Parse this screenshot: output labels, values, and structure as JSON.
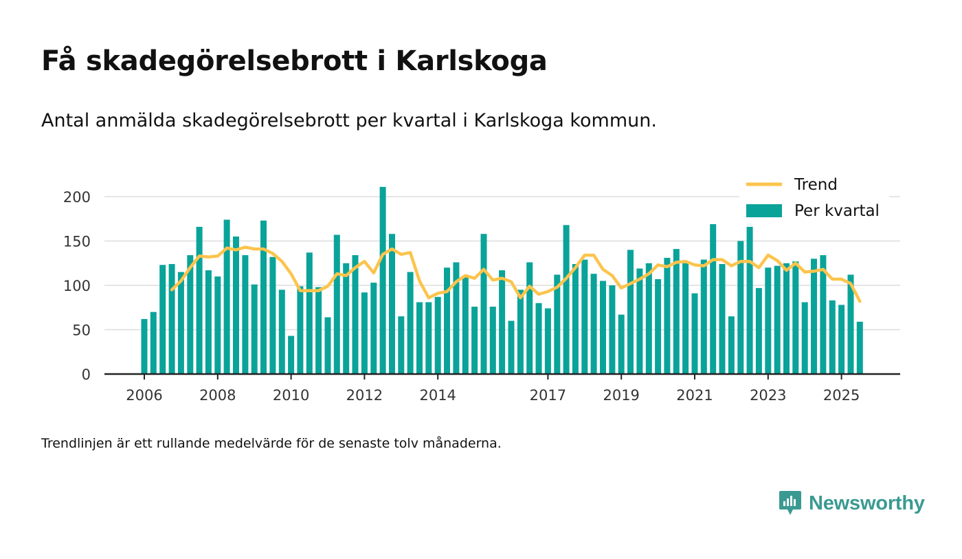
{
  "header": {
    "title": "Få skadegörelsebrott i Karlskoga",
    "subtitle": "Antal anmälda skadegörelsebrott per kvartal i Karlskoga kommun."
  },
  "footer": {
    "note": "Trendlinjen är ett rullande medelvärde för de senaste tolv månaderna.",
    "brand": "Newsworthy"
  },
  "colors": {
    "bar": "#0aa39a",
    "trend": "#fcc44c",
    "axis": "#222222",
    "grid": "#dddddd",
    "brand": "#3a9a92"
  },
  "chart_data": {
    "type": "bar",
    "title": "Få skadegörelsebrott i Karlskoga",
    "xlabel": "",
    "ylabel": "",
    "ylim": [
      0,
      220
    ],
    "yticks": [
      0,
      50,
      100,
      150,
      200
    ],
    "xtick_labels": [
      {
        "label": "2006",
        "q": 0
      },
      {
        "label": "2008",
        "q": 8
      },
      {
        "label": "2010",
        "q": 16
      },
      {
        "label": "2012",
        "q": 24
      },
      {
        "label": "2014",
        "q": 32
      },
      {
        "label": "2017",
        "q": 44
      },
      {
        "label": "2019",
        "q": 52
      },
      {
        "label": "2021",
        "q": 60
      },
      {
        "label": "2023",
        "q": 68
      },
      {
        "label": "2025",
        "q": 76
      }
    ],
    "legend": {
      "position": "top-right",
      "entries": [
        "Trend",
        "Per kvartal"
      ]
    },
    "series": [
      {
        "name": "Per kvartal",
        "type": "bar",
        "start": "2006 Q1",
        "values": [
          62,
          70,
          123,
          124,
          115,
          134,
          166,
          117,
          110,
          174,
          155,
          134,
          101,
          173,
          132,
          95,
          43,
          99,
          137,
          98,
          64,
          157,
          125,
          134,
          92,
          103,
          211,
          158,
          65,
          115,
          81,
          81,
          87,
          120,
          126,
          110,
          76,
          158,
          76,
          117,
          60,
          95,
          126,
          80,
          74,
          112,
          168,
          124,
          129,
          113,
          105,
          100,
          67,
          140,
          119,
          125,
          107,
          131,
          141,
          125,
          91,
          129,
          169,
          124,
          65,
          150,
          170,
          97,
          120,
          122,
          125,
          127,
          81,
          130,
          134,
          83,
          78,
          112,
          59
        ]
      },
      {
        "name": "Trend",
        "type": "line",
        "start": "2006 Q4",
        "values": [
          95,
          105,
          120,
          133,
          132,
          133,
          142,
          140,
          143,
          141,
          141,
          136,
          127,
          113,
          94,
          94,
          94,
          99,
          113,
          111,
          120,
          127,
          114,
          135,
          141,
          135,
          137,
          105,
          86,
          91,
          93,
          104,
          111,
          108,
          118,
          106,
          108,
          104,
          86,
          99,
          90,
          93,
          98,
          108,
          120,
          134,
          134,
          118,
          111,
          97,
          102,
          107,
          113,
          123,
          121,
          126,
          127,
          123,
          122,
          129,
          129,
          122,
          127,
          127,
          120,
          134,
          128,
          117,
          125,
          115,
          116,
          118,
          107,
          107,
          102,
          82
        ]
      }
    ]
  }
}
